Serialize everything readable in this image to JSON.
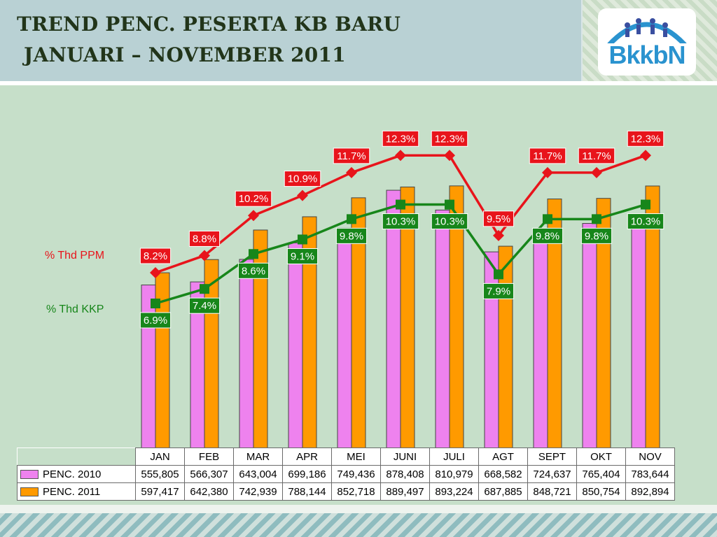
{
  "header": {
    "title_line1": "TREND PENC. PESERTA KB BARU",
    "title_line2": "JANUARI – NOVEMBER 2011",
    "logo_text": "BkkbN"
  },
  "chart_data": {
    "type": "bar",
    "categories": [
      "JAN",
      "FEB",
      "MAR",
      "APR",
      "MEI",
      "JUNI",
      "JULI",
      "AGT",
      "SEPT",
      "OKT",
      "NOV"
    ],
    "series": [
      {
        "name": "PENC. 2010",
        "color": "#ee82ee",
        "values": [
          555805,
          566307,
          643004,
          699186,
          749436,
          878408,
          810979,
          668582,
          724637,
          765404,
          783644
        ],
        "labels": [
          "555,805",
          "566,307",
          "643,004",
          "699,186",
          "749,436",
          "878,408",
          "810,979",
          "668,582",
          "724,637",
          "765,404",
          "783,644"
        ]
      },
      {
        "name": "PENC. 2011",
        "color": "#ff9a00",
        "values": [
          597417,
          642380,
          742939,
          788144,
          852718,
          889497,
          893224,
          687885,
          848721,
          850754,
          892894
        ],
        "labels": [
          "597,417",
          "642,380",
          "742,939",
          "788,144",
          "852,718",
          "889,497",
          "893,224",
          "687,885",
          "848,721",
          "850,754",
          "892,894"
        ]
      }
    ],
    "lines": [
      {
        "name": "% Thd PPM",
        "color": "#e8141b",
        "values": [
          8.2,
          8.8,
          10.2,
          10.9,
          11.7,
          12.3,
          12.3,
          9.5,
          11.7,
          11.7,
          12.3
        ],
        "labels": [
          "8.2%",
          "8.8%",
          "10.2%",
          "10.9%",
          "11.7%",
          "12.3%",
          "12.3%",
          "9.5%",
          "11.7%",
          "11.7%",
          "12.3%"
        ]
      },
      {
        "name": "% Thd KKP",
        "color": "#17861a",
        "values": [
          6.9,
          7.4,
          8.6,
          9.1,
          9.8,
          10.3,
          10.3,
          7.9,
          9.8,
          9.8,
          10.3
        ],
        "labels": [
          "6.9%",
          "7.4%",
          "8.6%",
          "9.1%",
          "9.8%",
          "10.3%",
          "10.3%",
          "7.9%",
          "9.8%",
          "9.8%",
          "10.3%"
        ]
      }
    ],
    "ylim": [
      0,
      1000000
    ],
    "legend": "data table below chart",
    "grid": false
  }
}
